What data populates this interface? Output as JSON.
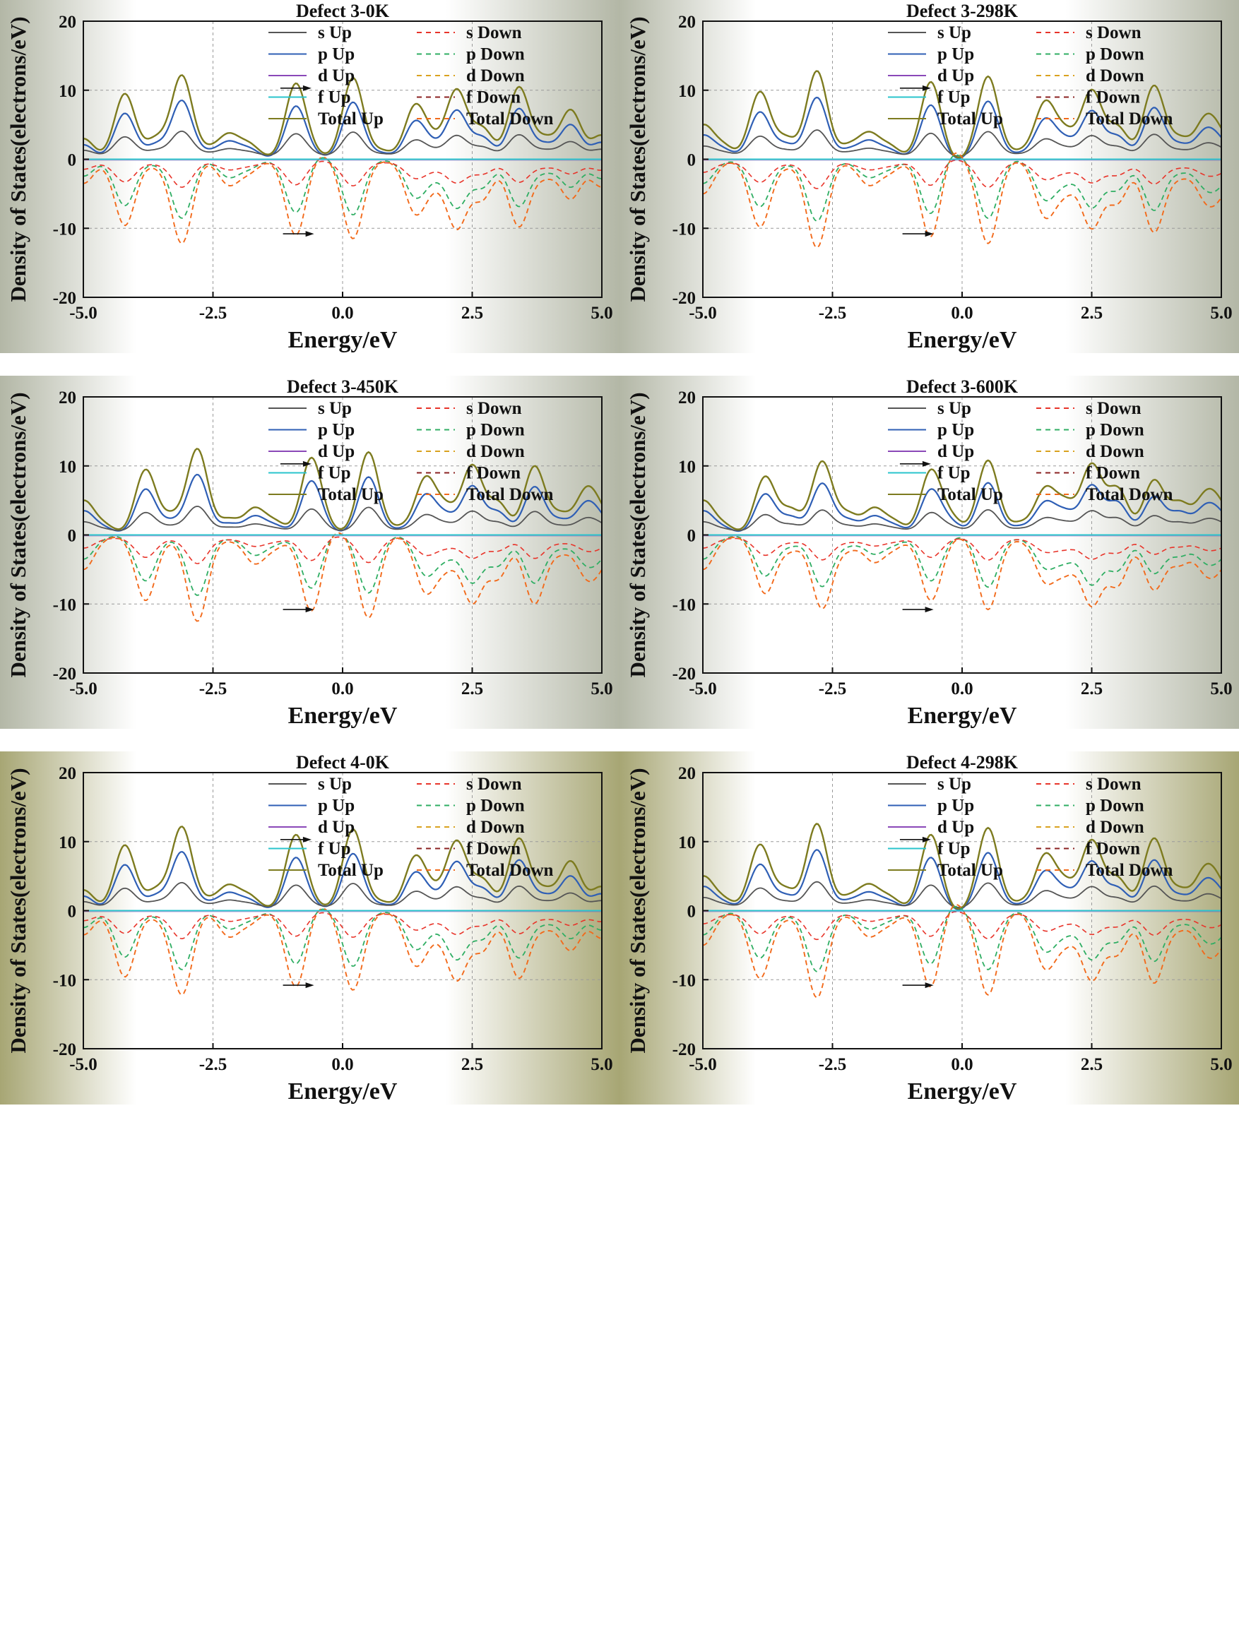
{
  "figure": {
    "shared": {
      "xlabel": "Energy/eV",
      "ylabel": "Density of States(electrons/eV)",
      "xlim": [
        -5.0,
        5.0
      ],
      "ylim": [
        -20,
        20
      ],
      "xticks": [
        "-5.0",
        "-2.5",
        "0.0",
        "2.5",
        "5.0"
      ],
      "yticks": [
        "20",
        "10",
        "0",
        "-10",
        "-20"
      ],
      "grid": "dashed",
      "legend": [
        "s Up",
        "s Down",
        "p Up",
        "p Down",
        "d Up",
        "d Down",
        "f Up",
        "f Down",
        "Total Up",
        "Total Down"
      ],
      "colors": {
        "s_up": "#555555",
        "s_down": "#e8342a",
        "p_up": "#2f5fb5",
        "p_down": "#2fae63",
        "d_up": "#8a48b8",
        "d_down": "#d9a21f",
        "f_up": "#2ac4cc",
        "f_down": "#8b2222",
        "total_up": "#7d7b1f",
        "total_down": "#f26a1b",
        "bg_edge_gray": "#b3b7a6",
        "bg_edge_olive": "#a7a674"
      }
    }
  },
  "chart_data": [
    {
      "type": "line",
      "title": "Defect 3-0K",
      "xlim": [
        -5,
        5
      ],
      "ylim": [
        -20,
        20
      ],
      "background": "gray",
      "up_peaks": [
        [
          -5.0,
          3.0
        ],
        [
          -4.2,
          9.5
        ],
        [
          -3.6,
          3.5
        ],
        [
          -3.1,
          12.2
        ],
        [
          -2.6,
          2.2
        ],
        [
          -2.2,
          3.8
        ],
        [
          -1.8,
          2.5
        ],
        [
          -0.9,
          11.0
        ],
        [
          -0.5,
          2.0
        ],
        [
          0.2,
          11.8
        ],
        [
          0.75,
          1.5
        ],
        [
          1.4,
          8.0
        ],
        [
          1.75,
          4.5
        ],
        [
          2.2,
          10.2
        ],
        [
          2.7,
          4.8
        ],
        [
          3.4,
          10.5
        ],
        [
          3.9,
          3.6
        ],
        [
          4.4,
          7.2
        ],
        [
          5.0,
          3.5
        ]
      ],
      "down_peaks": [
        [
          -5.0,
          -3.5
        ],
        [
          -4.2,
          -9.6
        ],
        [
          -3.6,
          -1.5
        ],
        [
          -3.1,
          -12.2
        ],
        [
          -2.6,
          -1.0
        ],
        [
          -2.2,
          -3.8
        ],
        [
          -1.8,
          -2.2
        ],
        [
          -0.9,
          -11.0
        ],
        [
          -0.5,
          -0.5
        ],
        [
          0.2,
          -11.5
        ],
        [
          0.75,
          -0.5
        ],
        [
          1.4,
          -8.0
        ],
        [
          1.75,
          -5.0
        ],
        [
          2.2,
          -10.2
        ],
        [
          2.7,
          -6.0
        ],
        [
          3.4,
          -9.8
        ],
        [
          3.9,
          -3.0
        ],
        [
          4.4,
          -5.8
        ],
        [
          5.0,
          -4.0
        ]
      ],
      "arrows": [
        [
          -1.2,
          10.3
        ],
        [
          -1.15,
          -10.8
        ]
      ]
    },
    {
      "type": "line",
      "title": "Defect 3-298K",
      "xlim": [
        -5,
        5
      ],
      "ylim": [
        -20,
        20
      ],
      "background": "gray",
      "up_peaks": [
        [
          -5.0,
          5.0
        ],
        [
          -4.6,
          2.5
        ],
        [
          -3.9,
          9.8
        ],
        [
          -3.4,
          3.5
        ],
        [
          -2.8,
          12.8
        ],
        [
          -2.2,
          2.4
        ],
        [
          -1.8,
          4.0
        ],
        [
          -1.4,
          2.3
        ],
        [
          -0.6,
          11.2
        ],
        [
          -0.25,
          2.0
        ],
        [
          0.5,
          12.0
        ],
        [
          1.1,
          1.5
        ],
        [
          1.6,
          8.5
        ],
        [
          2.0,
          5.0
        ],
        [
          2.5,
          10.1
        ],
        [
          3.0,
          5.0
        ],
        [
          3.7,
          10.7
        ],
        [
          4.2,
          3.5
        ],
        [
          4.7,
          6.5
        ],
        [
          5.0,
          4.5
        ]
      ],
      "down_peaks": [
        [
          -5.0,
          -5.0
        ],
        [
          -4.6,
          -1.0
        ],
        [
          -3.9,
          -9.8
        ],
        [
          -3.4,
          -1.5
        ],
        [
          -2.8,
          -12.8
        ],
        [
          -2.2,
          -1.0
        ],
        [
          -1.8,
          -3.8
        ],
        [
          -1.4,
          -2.2
        ],
        [
          -0.6,
          -11.2
        ],
        [
          -0.25,
          -0.5
        ],
        [
          0.5,
          -12.2
        ],
        [
          1.1,
          -0.5
        ],
        [
          1.6,
          -8.5
        ],
        [
          2.0,
          -5.5
        ],
        [
          2.5,
          -10.1
        ],
        [
          3.0,
          -6.5
        ],
        [
          3.7,
          -10.6
        ],
        [
          4.2,
          -3.0
        ],
        [
          4.7,
          -6.5
        ],
        [
          5.0,
          -5.5
        ]
      ],
      "arrows": [
        [
          -1.2,
          10.3
        ],
        [
          -1.15,
          -10.8
        ]
      ]
    },
    {
      "type": "line",
      "title": "Defect 3-450K",
      "xlim": [
        -5,
        5
      ],
      "ylim": [
        -20,
        20
      ],
      "background": "gray",
      "up_peaks": [
        [
          -5.0,
          5.0
        ],
        [
          -4.6,
          2.0
        ],
        [
          -3.8,
          9.5
        ],
        [
          -3.3,
          3.5
        ],
        [
          -2.8,
          12.5
        ],
        [
          -2.2,
          2.5
        ],
        [
          -1.7,
          4.0
        ],
        [
          -1.3,
          2.3
        ],
        [
          -0.6,
          11.2
        ],
        [
          -0.2,
          2.0
        ],
        [
          0.5,
          12.0
        ],
        [
          1.1,
          1.5
        ],
        [
          1.6,
          8.5
        ],
        [
          2.0,
          5.0
        ],
        [
          2.5,
          10.2
        ],
        [
          3.0,
          5.0
        ],
        [
          3.7,
          10.0
        ],
        [
          4.2,
          3.5
        ],
        [
          4.7,
          7.0
        ],
        [
          5.0,
          4.5
        ]
      ],
      "down_peaks": [
        [
          -5.0,
          -5.0
        ],
        [
          -4.6,
          -1.0
        ],
        [
          -3.8,
          -9.5
        ],
        [
          -3.3,
          -1.5
        ],
        [
          -2.8,
          -12.5
        ],
        [
          -2.2,
          -1.0
        ],
        [
          -1.7,
          -4.2
        ],
        [
          -1.3,
          -2.2
        ],
        [
          -0.6,
          -11.0
        ],
        [
          -0.2,
          -0.5
        ],
        [
          0.5,
          -12.0
        ],
        [
          1.1,
          -0.5
        ],
        [
          1.6,
          -8.5
        ],
        [
          2.0,
          -5.5
        ],
        [
          2.5,
          -10.0
        ],
        [
          3.0,
          -6.5
        ],
        [
          3.7,
          -10.0
        ],
        [
          4.2,
          -3.0
        ],
        [
          4.7,
          -6.5
        ],
        [
          5.0,
          -5.0
        ]
      ],
      "arrows": [
        [
          -1.2,
          10.3
        ],
        [
          -1.15,
          -10.8
        ]
      ]
    },
    {
      "type": "line",
      "title": "Defect 3-600K",
      "xlim": [
        -5,
        5
      ],
      "ylim": [
        -20,
        20
      ],
      "background": "gray",
      "up_peaks": [
        [
          -5.0,
          5.0
        ],
        [
          -4.6,
          2.0
        ],
        [
          -3.8,
          8.5
        ],
        [
          -3.3,
          4.0
        ],
        [
          -2.7,
          10.7
        ],
        [
          -2.2,
          3.5
        ],
        [
          -1.7,
          4.0
        ],
        [
          -1.3,
          2.3
        ],
        [
          -0.6,
          9.5
        ],
        [
          -0.2,
          3.5
        ],
        [
          0.5,
          10.8
        ],
        [
          1.1,
          2.0
        ],
        [
          1.6,
          7.0
        ],
        [
          2.0,
          5.5
        ],
        [
          2.5,
          10.4
        ],
        [
          3.0,
          7.0
        ],
        [
          3.7,
          8.0
        ],
        [
          4.2,
          5.0
        ],
        [
          4.7,
          6.5
        ],
        [
          5.0,
          5.0
        ]
      ],
      "down_peaks": [
        [
          -5.0,
          -5.0
        ],
        [
          -4.6,
          -1.0
        ],
        [
          -3.8,
          -8.5
        ],
        [
          -3.3,
          -2.5
        ],
        [
          -2.7,
          -10.7
        ],
        [
          -2.2,
          -2.5
        ],
        [
          -1.7,
          -4.0
        ],
        [
          -1.3,
          -2.2
        ],
        [
          -0.6,
          -9.5
        ],
        [
          -0.2,
          -1.5
        ],
        [
          0.5,
          -10.8
        ],
        [
          1.1,
          -1.0
        ],
        [
          1.6,
          -7.0
        ],
        [
          2.0,
          -6.0
        ],
        [
          2.5,
          -10.4
        ],
        [
          3.0,
          -7.5
        ],
        [
          3.7,
          -8.0
        ],
        [
          4.2,
          -4.5
        ],
        [
          4.7,
          -6.0
        ],
        [
          5.0,
          -5.0
        ]
      ],
      "arrows": [
        [
          -1.2,
          10.3
        ],
        [
          -1.15,
          -10.8
        ]
      ]
    },
    {
      "type": "line",
      "title": "Defect 4-0K",
      "xlim": [
        -5,
        5
      ],
      "ylim": [
        -20,
        20
      ],
      "background": "olive",
      "up_peaks": [
        [
          -5.0,
          3.0
        ],
        [
          -4.2,
          9.5
        ],
        [
          -3.6,
          3.5
        ],
        [
          -3.1,
          12.2
        ],
        [
          -2.6,
          2.2
        ],
        [
          -2.2,
          3.8
        ],
        [
          -1.8,
          2.5
        ],
        [
          -0.9,
          11.0
        ],
        [
          -0.5,
          2.0
        ],
        [
          0.2,
          11.8
        ],
        [
          0.75,
          1.5
        ],
        [
          1.4,
          8.0
        ],
        [
          1.75,
          4.5
        ],
        [
          2.2,
          10.2
        ],
        [
          2.7,
          4.8
        ],
        [
          3.4,
          10.5
        ],
        [
          3.9,
          3.6
        ],
        [
          4.4,
          7.2
        ],
        [
          5.0,
          3.5
        ]
      ],
      "down_peaks": [
        [
          -5.0,
          -3.5
        ],
        [
          -4.2,
          -9.6
        ],
        [
          -3.6,
          -1.5
        ],
        [
          -3.1,
          -12.2
        ],
        [
          -2.6,
          -1.0
        ],
        [
          -2.2,
          -3.8
        ],
        [
          -1.8,
          -2.2
        ],
        [
          -0.9,
          -11.0
        ],
        [
          -0.5,
          -0.5
        ],
        [
          0.2,
          -11.5
        ],
        [
          0.75,
          -0.5
        ],
        [
          1.4,
          -8.0
        ],
        [
          1.75,
          -5.0
        ],
        [
          2.2,
          -10.2
        ],
        [
          2.7,
          -6.0
        ],
        [
          3.4,
          -9.8
        ],
        [
          3.9,
          -3.0
        ],
        [
          4.4,
          -5.8
        ],
        [
          5.0,
          -4.0
        ]
      ],
      "arrows": [
        [
          -1.2,
          10.3
        ],
        [
          -1.15,
          -10.8
        ]
      ]
    },
    {
      "type": "line",
      "title": "Defect 4-298K",
      "xlim": [
        -5,
        5
      ],
      "ylim": [
        -20,
        20
      ],
      "background": "olive",
      "up_peaks": [
        [
          -5.0,
          5.0
        ],
        [
          -4.6,
          2.2
        ],
        [
          -3.9,
          9.6
        ],
        [
          -3.4,
          3.5
        ],
        [
          -2.8,
          12.6
        ],
        [
          -2.2,
          2.4
        ],
        [
          -1.8,
          3.9
        ],
        [
          -1.4,
          2.3
        ],
        [
          -0.6,
          11.0
        ],
        [
          -0.25,
          2.0
        ],
        [
          0.5,
          12.0
        ],
        [
          1.1,
          1.5
        ],
        [
          1.6,
          8.3
        ],
        [
          2.0,
          5.0
        ],
        [
          2.5,
          10.3
        ],
        [
          3.0,
          5.0
        ],
        [
          3.7,
          10.5
        ],
        [
          4.2,
          3.5
        ],
        [
          4.7,
          6.7
        ],
        [
          5.0,
          4.5
        ]
      ],
      "down_peaks": [
        [
          -5.0,
          -5.0
        ],
        [
          -4.6,
          -1.0
        ],
        [
          -3.9,
          -9.8
        ],
        [
          -3.4,
          -1.5
        ],
        [
          -2.8,
          -12.6
        ],
        [
          -2.2,
          -1.0
        ],
        [
          -1.8,
          -3.8
        ],
        [
          -1.4,
          -2.2
        ],
        [
          -0.6,
          -11.0
        ],
        [
          -0.25,
          -0.5
        ],
        [
          0.5,
          -12.2
        ],
        [
          1.1,
          -0.5
        ],
        [
          1.6,
          -8.5
        ],
        [
          2.0,
          -5.5
        ],
        [
          2.5,
          -10.2
        ],
        [
          3.0,
          -6.5
        ],
        [
          3.7,
          -10.5
        ],
        [
          4.2,
          -3.0
        ],
        [
          4.7,
          -6.5
        ],
        [
          5.0,
          -5.5
        ]
      ],
      "arrows": [
        [
          -1.2,
          10.3
        ],
        [
          -1.15,
          -10.8
        ]
      ]
    }
  ]
}
